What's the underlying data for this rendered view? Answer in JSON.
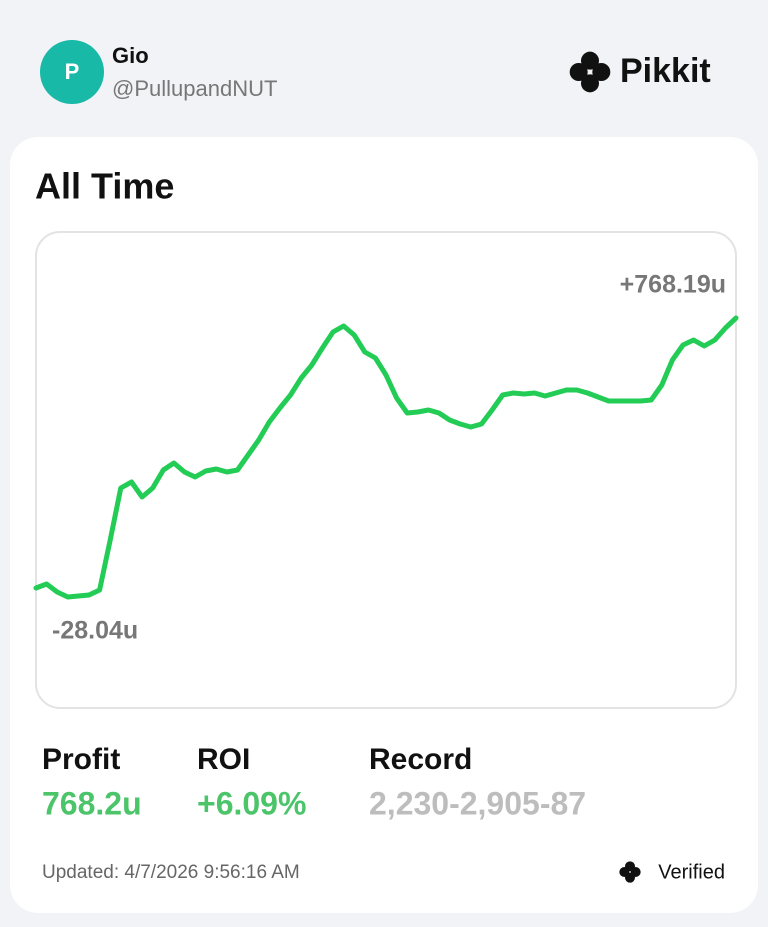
{
  "header": {
    "avatar_letter": "P",
    "name": "Gio",
    "handle": "@PullupandNUT",
    "brand": "Pikkit"
  },
  "chart_data": {
    "type": "line",
    "title": "All Time",
    "series": [
      {
        "color": "#22cc55",
        "values": [
          -2.3,
          9.1,
          -13.8,
          -28.04,
          -25.2,
          -22.3,
          -8.0,
          134.6,
          283.0,
          300.2,
          257.4,
          283.0,
          334.4,
          354.4,
          328.7,
          314.4,
          331.6,
          337.3,
          328.7,
          334.4,
          377.2,
          420.0,
          471.4,
          511.4,
          548.5,
          597.0,
          634.1,
          682.6,
          728.3,
          745.4,
          719.7,
          671.2,
          654.1,
          605.6,
          539.9,
          497.1,
          500.0,
          505.7,
          497.1,
          477.2,
          465.7,
          457.2,
          465.7,
          505.7,
          548.5,
          554.2,
          551.4,
          554.2,
          545.7,
          554.2,
          562.8,
          562.8,
          554.2,
          542.8,
          531.4,
          531.4,
          531.4,
          531.4,
          534.2,
          577.0,
          648.4,
          691.2,
          705.5,
          688.4,
          705.5,
          739.7,
          768.19
        ]
      }
    ],
    "ylim": [
      -28.04,
      768.19
    ],
    "annotations": [
      {
        "value": 768.19,
        "label": "+768.19u"
      },
      {
        "value": -28.04,
        "label": "-28.04u"
      }
    ]
  },
  "stats": [
    {
      "label": "Profit",
      "value": "768.2u"
    },
    {
      "label": "ROI",
      "value": "+6.09%"
    },
    {
      "label": "Record",
      "value": "2,230-2,905-87"
    }
  ],
  "footer": {
    "updated": "Updated: 4/7/2026 9:56:16 AM",
    "verified": "Verified"
  }
}
